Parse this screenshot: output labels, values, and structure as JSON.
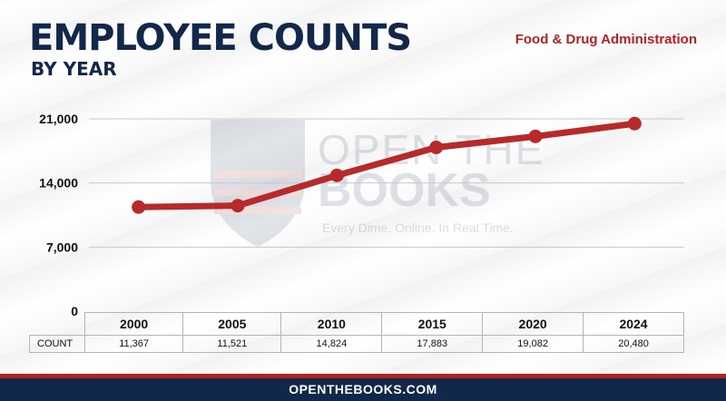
{
  "header": {
    "title": "EMPLOYEE COUNTS",
    "subtitle": "BY YEAR",
    "agency": "Food & Drug Administration"
  },
  "watermark": {
    "line1": "OPEN THE",
    "line2": "BOOKS",
    "tagline": "Every Dime. Online. In Real Time."
  },
  "table": {
    "row_label": "COUNT",
    "years": [
      "2000",
      "2005",
      "2010",
      "2015",
      "2020",
      "2024"
    ],
    "counts": [
      "11,367",
      "11,521",
      "14,824",
      "17,883",
      "19,082",
      "20,480"
    ]
  },
  "footer": {
    "text": "OPENTHEBOOKS.COM"
  },
  "colors": {
    "navy": "#12284b",
    "red": "#b22222",
    "line": "#b82a2a"
  },
  "chart_data": {
    "type": "line",
    "title": "EMPLOYEE COUNTS",
    "subtitle": "BY YEAR",
    "categories": [
      "2000",
      "2005",
      "2010",
      "2015",
      "2020",
      "2024"
    ],
    "values": [
      11367,
      11521,
      14824,
      17883,
      19082,
      20480
    ],
    "y_ticks": [
      "21,000",
      "14,000",
      "7,000",
      "0"
    ],
    "ylim": [
      0,
      21000
    ],
    "grid": true
  }
}
